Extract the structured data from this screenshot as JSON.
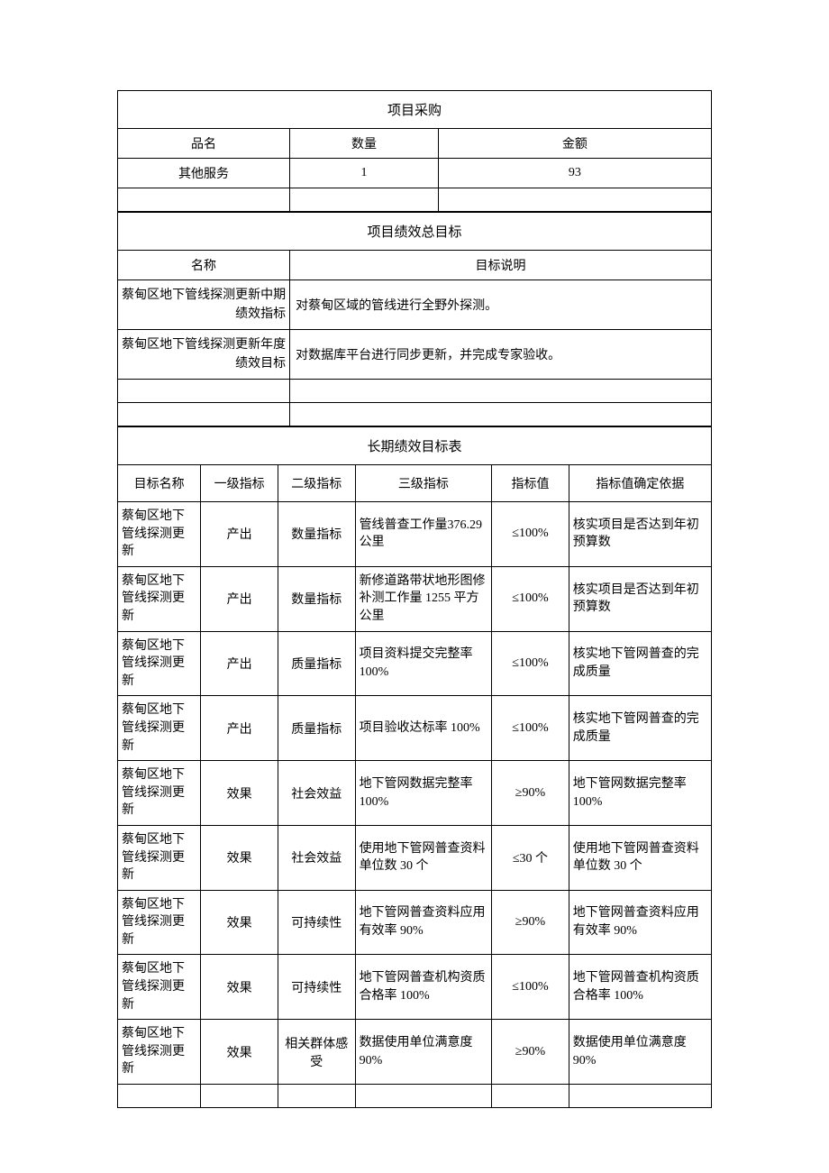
{
  "procurement": {
    "title": "项目采购",
    "headers": {
      "name": "品名",
      "qty": "数量",
      "amount": "金额"
    },
    "rows": [
      {
        "name": "其他服务",
        "qty": "1",
        "amount": "93"
      }
    ]
  },
  "overall_goal": {
    "title": "项目绩效总目标",
    "headers": {
      "name": "名称",
      "desc": "目标说明"
    },
    "rows": [
      {
        "name": "蔡甸区地下管线探测更新中期绩效指标",
        "desc": "对蔡甸区域的管线进行全野外探测。"
      },
      {
        "name": "蔡甸区地下管线探测更新年度绩效目标",
        "desc": "对数据库平台进行同步更新，并完成专家验收。"
      }
    ]
  },
  "longterm": {
    "title": "长期绩效目标表",
    "headers": {
      "goal_name": "目标名称",
      "l1": "一级指标",
      "l2": "二级指标",
      "l3": "三级指标",
      "val": "指标值",
      "basis": "指标值确定依据"
    },
    "rows": [
      {
        "name": "蔡甸区地下管线探测更新",
        "l1": "产出",
        "l2": "数量指标",
        "l3": "管线普查工作量376.29 公里",
        "val": "≤100%",
        "basis": "核实项目是否达到年初预算数"
      },
      {
        "name": "蔡甸区地下管线探测更新",
        "l1": "产出",
        "l2": "数量指标",
        "l3": "新修道路带状地形图修补测工作量 1255 平方公里",
        "val": "≤100%",
        "basis": "核实项目是否达到年初预算数"
      },
      {
        "name": "蔡甸区地下管线探测更新",
        "l1": "产出",
        "l2": "质量指标",
        "l3": "项目资料提交完整率100%",
        "val": "≤100%",
        "basis": "核实地下管网普查的完成质量"
      },
      {
        "name": "蔡甸区地下管线探测更新",
        "l1": "产出",
        "l2": "质量指标",
        "l3": "项目验收达标率 100%",
        "val": "≤100%",
        "basis": "核实地下管网普查的完成质量"
      },
      {
        "name": "蔡甸区地下管线探测更新",
        "l1": "效果",
        "l2": "社会效益",
        "l3": "地下管网数据完整率100%",
        "val": "≥90%",
        "basis": "地下管网数据完整率100%"
      },
      {
        "name": "蔡甸区地下管线探测更新",
        "l1": "效果",
        "l2": "社会效益",
        "l3": "使用地下管网普查资料单位数 30 个",
        "val": "≤30 个",
        "basis": "使用地下管网普查资料单位数 30 个"
      },
      {
        "name": "蔡甸区地下管线探测更新",
        "l1": "效果",
        "l2": "可持续性",
        "l3": "地下管网普查资料应用有效率 90%",
        "val": "≥90%",
        "basis": "地下管网普查资料应用有效率 90%"
      },
      {
        "name": "蔡甸区地下管线探测更新",
        "l1": "效果",
        "l2": "可持续性",
        "l3": "地下管网普查机构资质合格率 100%",
        "val": "≤100%",
        "basis": "地下管网普查机构资质合格率 100%"
      },
      {
        "name": "蔡甸区地下管线探测更新",
        "l1": "效果",
        "l2": "相关群体感受",
        "l3": "数据使用单位满意度90%",
        "val": "≥90%",
        "basis": "数据使用单位满意度 90%"
      }
    ]
  },
  "colors": {
    "border": "#000000",
    "text": "#000000",
    "bg": "#ffffff"
  },
  "column_widths": {
    "procurement": [
      "29%",
      "25%",
      "46%"
    ],
    "overall_goal": [
      "29%",
      "71%"
    ],
    "longterm": [
      "14%",
      "13%",
      "13%",
      "23%",
      "13%",
      "24%"
    ]
  }
}
